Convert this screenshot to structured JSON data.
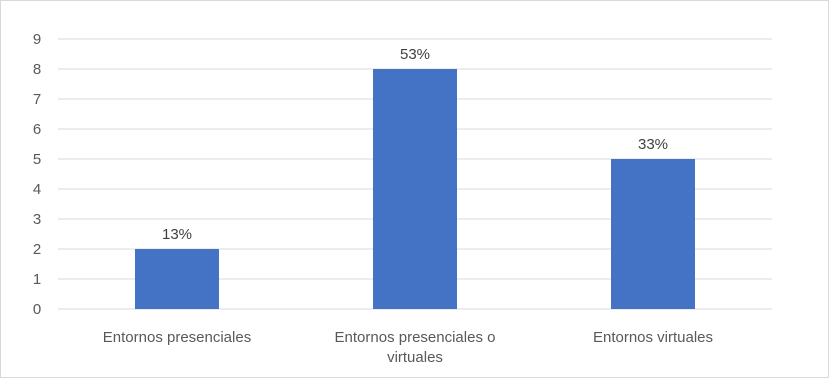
{
  "chart_data": {
    "type": "bar",
    "categories": [
      [
        "Entornos presenciales"
      ],
      [
        "Entornos presenciales o",
        "virtuales"
      ],
      [
        "Entornos virtuales"
      ]
    ],
    "values": [
      2,
      8,
      5
    ],
    "data_labels": [
      "13%",
      "53%",
      "33%"
    ],
    "yticks": [
      "0",
      "1",
      "2",
      "3",
      "4",
      "5",
      "6",
      "7",
      "8",
      "9"
    ],
    "ylim": [
      0,
      9
    ],
    "grid": true,
    "legend": "none",
    "bar_color": "#4472c4",
    "grid_color": "#d9d9d9"
  }
}
